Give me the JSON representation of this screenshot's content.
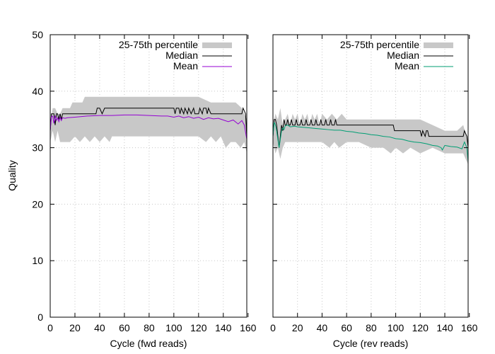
{
  "chart_data": {
    "type": "line",
    "ylabel": "Quality",
    "ylim": [
      0,
      50
    ],
    "yticks": [
      0,
      10,
      20,
      30,
      40,
      50
    ],
    "xlim": [
      0,
      159
    ],
    "xticks": [
      0,
      20,
      40,
      60,
      80,
      100,
      120,
      140,
      160
    ],
    "grid": true,
    "legend_position": "top-right",
    "colors": {
      "band": "#c8c8c8",
      "median": "#000000",
      "fwd_mean": "#9400d3",
      "rev_mean": "#009e73"
    },
    "panels": [
      {
        "id": "fwd",
        "xlabel": "Cycle (fwd reads)",
        "legend": [
          "25-75th percentile",
          "Median",
          "Mean"
        ],
        "band_upper": [
          [
            0,
            34
          ],
          [
            2,
            37
          ],
          [
            4,
            37
          ],
          [
            6,
            36
          ],
          [
            8,
            36
          ],
          [
            10,
            37
          ],
          [
            12,
            37
          ],
          [
            16,
            37
          ],
          [
            18,
            38
          ],
          [
            20,
            38
          ],
          [
            26,
            38
          ],
          [
            28,
            39
          ],
          [
            30,
            39
          ],
          [
            40,
            39
          ],
          [
            60,
            39
          ],
          [
            80,
            39
          ],
          [
            100,
            39
          ],
          [
            120,
            39
          ],
          [
            130,
            38
          ],
          [
            140,
            38
          ],
          [
            150,
            38
          ],
          [
            155,
            37
          ],
          [
            159,
            35
          ]
        ],
        "band_lower": [
          [
            0,
            31
          ],
          [
            2,
            33
          ],
          [
            4,
            31
          ],
          [
            6,
            33
          ],
          [
            8,
            31
          ],
          [
            10,
            31
          ],
          [
            12,
            31
          ],
          [
            16,
            31
          ],
          [
            20,
            32
          ],
          [
            24,
            31
          ],
          [
            28,
            32
          ],
          [
            32,
            31
          ],
          [
            36,
            32
          ],
          [
            40,
            31
          ],
          [
            44,
            32
          ],
          [
            48,
            31
          ],
          [
            50,
            32
          ],
          [
            60,
            32
          ],
          [
            80,
            32
          ],
          [
            100,
            32
          ],
          [
            110,
            32
          ],
          [
            120,
            32
          ],
          [
            126,
            31
          ],
          [
            130,
            32
          ],
          [
            134,
            31
          ],
          [
            138,
            32
          ],
          [
            142,
            30
          ],
          [
            146,
            31
          ],
          [
            150,
            31
          ],
          [
            154,
            30
          ],
          [
            157,
            31
          ],
          [
            159,
            29
          ]
        ],
        "median": [
          [
            0,
            33
          ],
          [
            1,
            36
          ],
          [
            3,
            36
          ],
          [
            4,
            34
          ],
          [
            5,
            36
          ],
          [
            6,
            36
          ],
          [
            7,
            35
          ],
          [
            8,
            36
          ],
          [
            9,
            35
          ],
          [
            10,
            36
          ],
          [
            12,
            36
          ],
          [
            14,
            36
          ],
          [
            37,
            36
          ],
          [
            38,
            37
          ],
          [
            40,
            37
          ],
          [
            42,
            36
          ],
          [
            44,
            37
          ],
          [
            100,
            37
          ],
          [
            101,
            36
          ],
          [
            102,
            37
          ],
          [
            104,
            37
          ],
          [
            105,
            36
          ],
          [
            106,
            37
          ],
          [
            108,
            36
          ],
          [
            109,
            37
          ],
          [
            111,
            36
          ],
          [
            112,
            37
          ],
          [
            114,
            36
          ],
          [
            116,
            37
          ],
          [
            117,
            36
          ],
          [
            120,
            36
          ],
          [
            121,
            37
          ],
          [
            123,
            36
          ],
          [
            124,
            37
          ],
          [
            126,
            37
          ],
          [
            127,
            36
          ],
          [
            128,
            37
          ],
          [
            130,
            36
          ],
          [
            155,
            36
          ],
          [
            156,
            37
          ],
          [
            158,
            36
          ],
          [
            159,
            32
          ]
        ],
        "mean": [
          [
            0,
            33
          ],
          [
            1,
            35.5
          ],
          [
            2,
            35.6
          ],
          [
            3,
            34.3
          ],
          [
            4,
            35.7
          ],
          [
            5,
            34.8
          ],
          [
            6,
            35.3
          ],
          [
            7,
            34.6
          ],
          [
            8,
            35.4
          ],
          [
            9,
            34.8
          ],
          [
            10,
            35.3
          ],
          [
            12,
            35.2
          ],
          [
            14,
            35.3
          ],
          [
            20,
            35.4
          ],
          [
            30,
            35.6
          ],
          [
            40,
            35.7
          ],
          [
            50,
            35.7
          ],
          [
            60,
            35.8
          ],
          [
            70,
            35.8
          ],
          [
            80,
            35.7
          ],
          [
            90,
            35.6
          ],
          [
            95,
            35.6
          ],
          [
            100,
            35.4
          ],
          [
            104,
            35.6
          ],
          [
            108,
            35.3
          ],
          [
            112,
            35.5
          ],
          [
            116,
            35.2
          ],
          [
            120,
            35.4
          ],
          [
            124,
            35
          ],
          [
            128,
            35.3
          ],
          [
            132,
            35.1
          ],
          [
            136,
            35.2
          ],
          [
            140,
            34.9
          ],
          [
            144,
            34.6
          ],
          [
            148,
            34.9
          ],
          [
            152,
            34.2
          ],
          [
            155,
            34.8
          ],
          [
            157,
            34
          ],
          [
            159,
            31.5
          ]
        ]
      },
      {
        "id": "rev",
        "xlabel": "Cycle (rev reads)",
        "legend": [
          "25-75th percentile",
          "Median",
          "Mean"
        ],
        "band_upper": [
          [
            0,
            34
          ],
          [
            2,
            36
          ],
          [
            4,
            35
          ],
          [
            6,
            37
          ],
          [
            8,
            34
          ],
          [
            10,
            35
          ],
          [
            12,
            36
          ],
          [
            14,
            34
          ],
          [
            16,
            36
          ],
          [
            18,
            35
          ],
          [
            20,
            36
          ],
          [
            22,
            34
          ],
          [
            24,
            36
          ],
          [
            26,
            35
          ],
          [
            28,
            36
          ],
          [
            30,
            34
          ],
          [
            32,
            36
          ],
          [
            34,
            35
          ],
          [
            36,
            36
          ],
          [
            38,
            34
          ],
          [
            40,
            36
          ],
          [
            44,
            35
          ],
          [
            48,
            36
          ],
          [
            52,
            35
          ],
          [
            56,
            36
          ],
          [
            60,
            35
          ],
          [
            80,
            35
          ],
          [
            100,
            35
          ],
          [
            110,
            35
          ],
          [
            120,
            35
          ],
          [
            130,
            34
          ],
          [
            140,
            33
          ],
          [
            150,
            33
          ],
          [
            155,
            34
          ],
          [
            159,
            31
          ]
        ],
        "band_lower": [
          [
            0,
            31
          ],
          [
            2,
            29
          ],
          [
            4,
            30
          ],
          [
            6,
            28
          ],
          [
            8,
            30
          ],
          [
            10,
            31
          ],
          [
            14,
            31
          ],
          [
            20,
            31
          ],
          [
            30,
            31
          ],
          [
            40,
            31
          ],
          [
            46,
            30
          ],
          [
            50,
            31
          ],
          [
            54,
            30
          ],
          [
            60,
            31
          ],
          [
            70,
            31
          ],
          [
            80,
            30
          ],
          [
            90,
            30
          ],
          [
            96,
            29
          ],
          [
            100,
            30
          ],
          [
            106,
            29
          ],
          [
            112,
            30
          ],
          [
            120,
            29
          ],
          [
            130,
            30
          ],
          [
            140,
            29
          ],
          [
            150,
            29
          ],
          [
            155,
            29
          ],
          [
            159,
            27
          ]
        ],
        "median": [
          [
            0,
            32
          ],
          [
            1,
            35
          ],
          [
            2,
            35
          ],
          [
            3,
            34
          ],
          [
            4,
            32
          ],
          [
            5,
            30
          ],
          [
            6,
            32
          ],
          [
            7,
            34
          ],
          [
            8,
            33
          ],
          [
            9,
            35
          ],
          [
            10,
            34
          ],
          [
            11,
            34
          ],
          [
            12,
            35
          ],
          [
            13,
            34
          ],
          [
            14,
            34
          ],
          [
            15,
            35
          ],
          [
            16,
            34
          ],
          [
            18,
            34
          ],
          [
            19,
            35
          ],
          [
            20,
            34
          ],
          [
            22,
            34
          ],
          [
            23,
            35
          ],
          [
            24,
            34
          ],
          [
            26,
            34
          ],
          [
            27,
            35
          ],
          [
            28,
            34
          ],
          [
            30,
            34
          ],
          [
            31,
            35
          ],
          [
            32,
            34
          ],
          [
            34,
            34
          ],
          [
            35,
            35
          ],
          [
            36,
            34
          ],
          [
            38,
            34
          ],
          [
            39,
            35
          ],
          [
            40,
            34
          ],
          [
            42,
            34
          ],
          [
            43,
            35
          ],
          [
            44,
            34
          ],
          [
            46,
            34
          ],
          [
            47,
            35
          ],
          [
            48,
            34
          ],
          [
            50,
            34
          ],
          [
            51,
            35
          ],
          [
            52,
            34
          ],
          [
            98,
            34
          ],
          [
            99,
            33
          ],
          [
            120,
            33
          ],
          [
            121,
            32
          ],
          [
            122,
            33
          ],
          [
            124,
            32
          ],
          [
            125,
            33
          ],
          [
            126,
            33
          ],
          [
            127,
            32
          ],
          [
            155,
            32
          ],
          [
            156,
            33
          ],
          [
            158,
            32
          ],
          [
            159,
            30
          ]
        ],
        "mean": [
          [
            0,
            32
          ],
          [
            1,
            34.5
          ],
          [
            2,
            34
          ],
          [
            3,
            33
          ],
          [
            4,
            31.5
          ],
          [
            5,
            30
          ],
          [
            6,
            31.5
          ],
          [
            7,
            33
          ],
          [
            8,
            33.5
          ],
          [
            9,
            33.2
          ],
          [
            10,
            33.9
          ],
          [
            12,
            34
          ],
          [
            14,
            33.7
          ],
          [
            18,
            33.8
          ],
          [
            20,
            33.7
          ],
          [
            25,
            33.6
          ],
          [
            30,
            33.5
          ],
          [
            35,
            33.4
          ],
          [
            40,
            33.3
          ],
          [
            45,
            33.2
          ],
          [
            50,
            33.1
          ],
          [
            55,
            33.1
          ],
          [
            60,
            32.9
          ],
          [
            65,
            32.8
          ],
          [
            70,
            32.6
          ],
          [
            75,
            32.5
          ],
          [
            80,
            32.3
          ],
          [
            85,
            32.2
          ],
          [
            90,
            32
          ],
          [
            95,
            31.9
          ],
          [
            100,
            31.6
          ],
          [
            105,
            31.5
          ],
          [
            110,
            31.2
          ],
          [
            115,
            31
          ],
          [
            120,
            30.9
          ],
          [
            125,
            30.7
          ],
          [
            130,
            30.4
          ],
          [
            134,
            30.3
          ],
          [
            137,
            30
          ],
          [
            138,
            29.6
          ],
          [
            140,
            30.4
          ],
          [
            145,
            30.2
          ],
          [
            150,
            30.1
          ],
          [
            154,
            29.8
          ],
          [
            156,
            31
          ],
          [
            158,
            30
          ],
          [
            159,
            27.5
          ]
        ]
      }
    ]
  }
}
